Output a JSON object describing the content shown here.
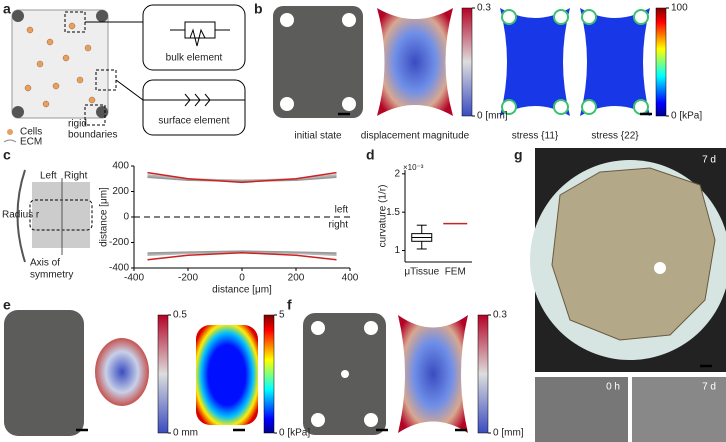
{
  "a": {
    "label": "a",
    "bulk": "bulk element",
    "surface": "surface element",
    "legend": [
      "Cells",
      "ECM"
    ],
    "rigid": [
      "rigid",
      "boundaries"
    ]
  },
  "b": {
    "label": "b",
    "captions": [
      "initial state",
      "displacement magnitude",
      "stress {11}",
      "stress {22}"
    ],
    "colorbars": [
      {
        "lim": [
          0,
          0.3
        ],
        "ticks": [
          {
            "value": 0,
            "label": "0 [mm]"
          },
          0.3
        ]
      },
      {
        "lim": [
          0,
          100
        ],
        "ticks": [
          {
            "value": 0,
            "label": "0 [kPa]"
          },
          100
        ]
      }
    ]
  },
  "c": {
    "label": "c",
    "schematic": {
      "left": "Left",
      "right": "Right",
      "radius": "Radius r",
      "axis": [
        "Axis of",
        "symmetry"
      ]
    },
    "chart": {
      "type": "line",
      "xlabel": "distance [μm]",
      "ylabel": "distance [μm]",
      "x": [
        -350,
        -200,
        0,
        200,
        350
      ],
      "series": [
        {
          "color": "#aaaaaa",
          "values": [
            320,
            292,
            284,
            292,
            320
          ]
        },
        {
          "color": "#b5b5b5",
          "values": [
            330,
            298,
            288,
            298,
            330
          ]
        },
        {
          "color": "#999999",
          "values": [
            312,
            288,
            280,
            288,
            312
          ]
        },
        {
          "color": "#cc2222",
          "values": [
            348,
            300,
            272,
            300,
            348
          ]
        },
        {
          "color": "#aaaaaa",
          "values": [
            -290,
            -280,
            -272,
            -280,
            -290
          ]
        },
        {
          "color": "#b5b5b5",
          "values": [
            -300,
            -285,
            -276,
            -285,
            -300
          ]
        },
        {
          "color": "#999999",
          "values": [
            -282,
            -275,
            -268,
            -275,
            -282
          ]
        },
        {
          "color": "#cc2222",
          "values": [
            -335,
            -300,
            -280,
            -300,
            -335
          ]
        }
      ],
      "hline": 0,
      "annotations": [
        "left",
        "right"
      ],
      "xlim": [
        -400,
        400
      ],
      "ylim": [
        -400,
        400
      ],
      "xticks": [
        -400,
        -200,
        0,
        200,
        400
      ],
      "yticks": [
        -400,
        -200,
        0,
        200,
        400
      ]
    }
  },
  "d": {
    "label": "d",
    "chart": {
      "type": "box",
      "ylabel": "curvature (1/r)",
      "exponent": "×10⁻³",
      "categories": [
        "μTissue",
        "FEM"
      ],
      "box": {
        "min": 1.02,
        "q1": 1.12,
        "median": 1.17,
        "q3": 1.22,
        "max": 1.33
      },
      "fem": 1.35,
      "fem_color": "#cc2222",
      "ylim": [
        0.85,
        2.05
      ],
      "yticks": [
        1,
        1.5,
        {
          "value": 2,
          "label": "2"
        }
      ]
    }
  },
  "e": {
    "label": "e",
    "colorbars": [
      {
        "lim": [
          0,
          0.5
        ],
        "ticks": [
          {
            "value": 0,
            "label": "0 mm"
          },
          0.5
        ]
      },
      {
        "lim": [
          0,
          5
        ],
        "ticks": [
          {
            "value": 0,
            "label": "0 [kPa]"
          },
          5
        ]
      }
    ]
  },
  "f": {
    "label": "f",
    "colorbars": [
      {
        "lim": [
          0,
          0.3
        ],
        "ticks": [
          {
            "value": 0,
            "label": "0 [mm]"
          },
          0.3
        ]
      }
    ]
  },
  "g": {
    "label": "g",
    "tags": [
      "7 d",
      "0 h",
      "7 d"
    ]
  }
}
